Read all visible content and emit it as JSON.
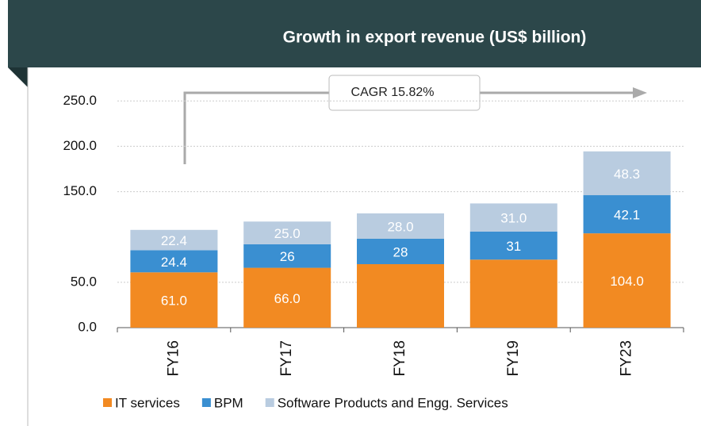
{
  "chart_data": {
    "type": "stacked_bar",
    "title": "Growth in export revenue (US$ billion)",
    "annotation": "CAGR 15.82%",
    "categories": [
      "FY16",
      "FY17",
      "FY18",
      "FY19",
      "FY23"
    ],
    "series": [
      {
        "name": "IT services",
        "color": "#f28a22",
        "values": [
          61.0,
          66.0,
          70,
          75,
          104.0
        ],
        "value_labels": [
          "61.0",
          "66.0",
          null,
          null,
          "104.0"
        ]
      },
      {
        "name": "BPM",
        "color": "#3a8fd1",
        "values": [
          24.4,
          26,
          28,
          31,
          42.1
        ],
        "value_labels": [
          "24.4",
          "26",
          "28",
          "31",
          "42.1"
        ]
      },
      {
        "name": "Software Products and Engg. Services",
        "color": "#b9cce0",
        "values": [
          22.4,
          25.0,
          28.0,
          31.0,
          48.3
        ],
        "value_labels": [
          "22.4",
          "25.0",
          "28.0",
          "31.0",
          "48.3"
        ]
      }
    ],
    "ylim": [
      0,
      280
    ],
    "yticks": [
      {
        "value": 0,
        "label": "0.0"
      },
      {
        "value": 50,
        "label": "50.0"
      },
      {
        "value": 150,
        "label": "150.0"
      },
      {
        "value": 200,
        "label": "200.0"
      },
      {
        "value": 250,
        "label": "250.0"
      }
    ],
    "grid": true
  }
}
